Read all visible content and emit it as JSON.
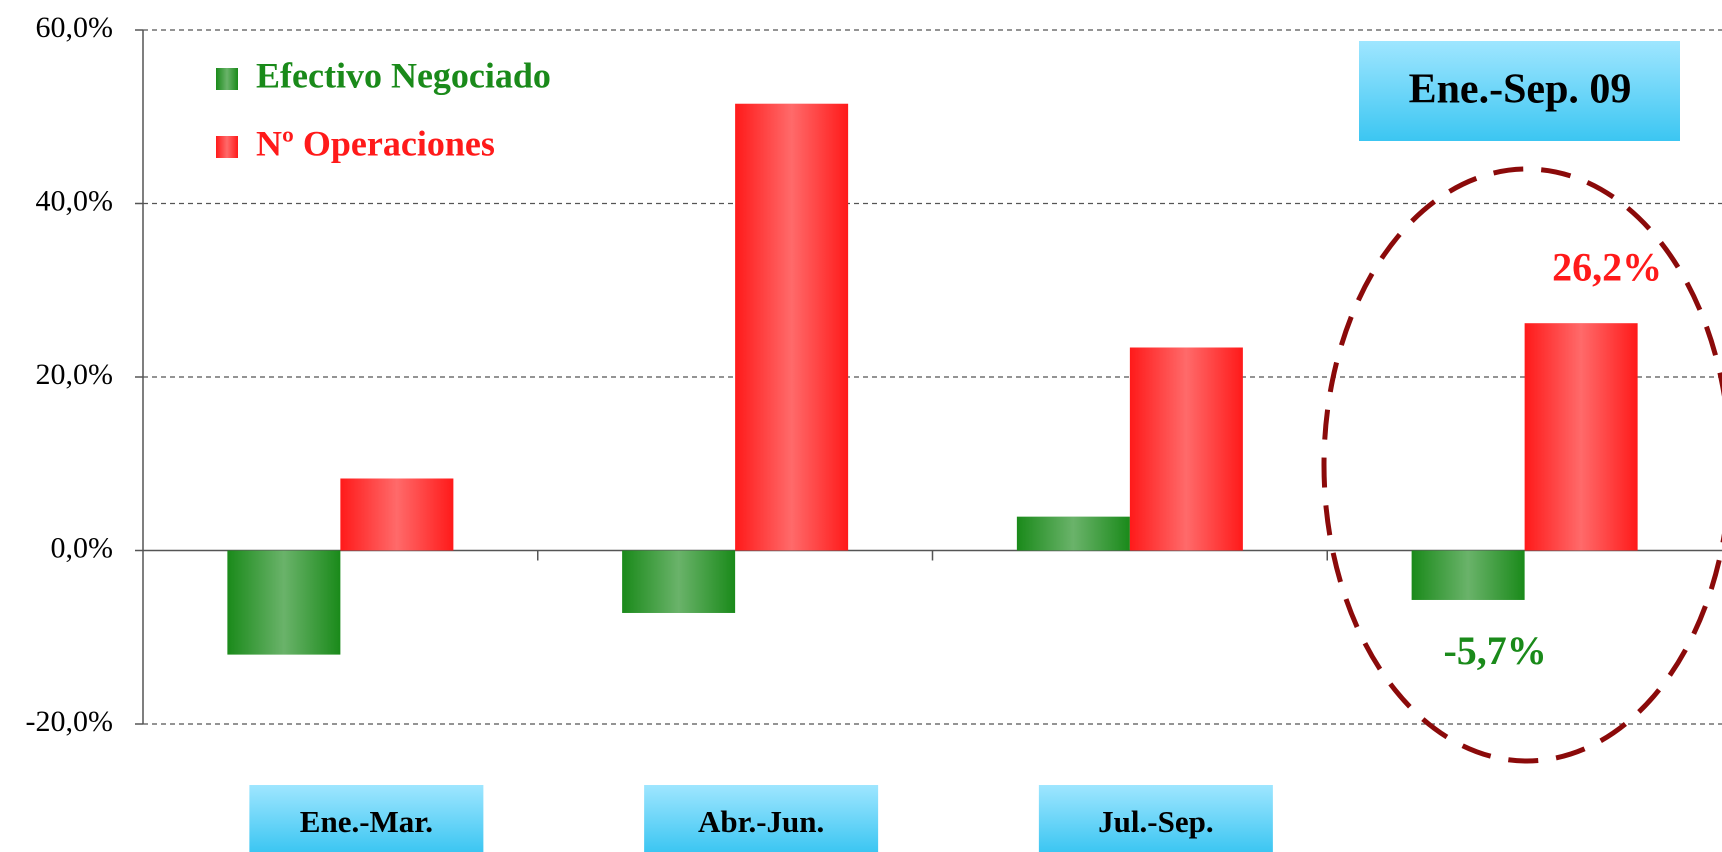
{
  "chart_data": {
    "type": "bar",
    "categories": [
      "Ene.-Mar.",
      "Abr.-Jun.",
      "Jul.-Sep.",
      "Ene.-Sep. 09"
    ],
    "series": [
      {
        "name": "Efectivo Negociado",
        "color": "#1a8a1a",
        "values": [
          -12.0,
          -7.2,
          3.9,
          -5.7
        ],
        "value_labels": [
          null,
          null,
          null,
          "-5,7%"
        ]
      },
      {
        "name": "Nº Operaciones",
        "color": "#ff1a1a",
        "values": [
          8.3,
          51.5,
          23.4,
          26.2
        ],
        "value_labels": [
          null,
          null,
          null,
          "26,2%"
        ]
      }
    ],
    "ylim": [
      -20,
      60
    ],
    "yticks": [
      {
        "value": -20,
        "label": "-20,0%"
      },
      {
        "value": 0,
        "label": "0,0%"
      },
      {
        "value": 20,
        "label": "20,0%"
      },
      {
        "value": 40,
        "label": "40,0%"
      },
      {
        "value": 60,
        "label": "60,0%"
      }
    ],
    "grid": true,
    "legend": "top-left"
  }
}
